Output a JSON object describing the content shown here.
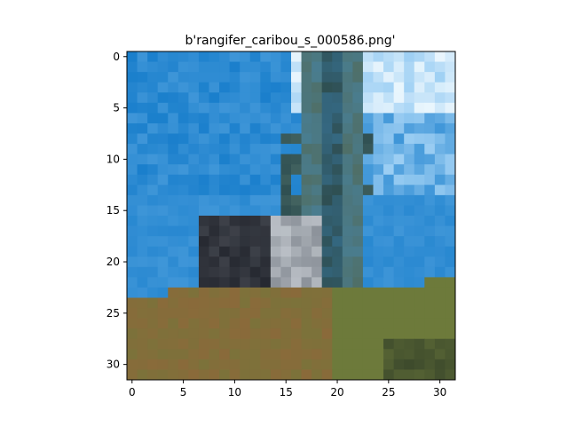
{
  "title": "b'rangifer_caribou_s_000586.png'",
  "image": {
    "width": 32,
    "height": 32,
    "description_hint": "pixelated photo of a caribou standing on a grassy hill in front of a tree against a blue sky",
    "colors": {
      "sky_deep": "#1a7fcc",
      "sky_mid": "#3f96d8",
      "sky_light": "#9fd0f4",
      "sky_white": "#eaf6fd",
      "tree_dark": "#2f4f52",
      "tree_mid": "#4f6f68",
      "grass_brown": "#8a6a3a",
      "grass_olive": "#6d7a3b",
      "grass_dark": "#3d4a2c",
      "animal_dark": "#252830",
      "animal_grey": "#8c929a",
      "animal_white": "#d8dde2"
    }
  },
  "x_ticks": [
    0,
    5,
    10,
    15,
    20,
    25,
    30
  ],
  "y_ticks": [
    0,
    5,
    10,
    15,
    20,
    25,
    30
  ]
}
